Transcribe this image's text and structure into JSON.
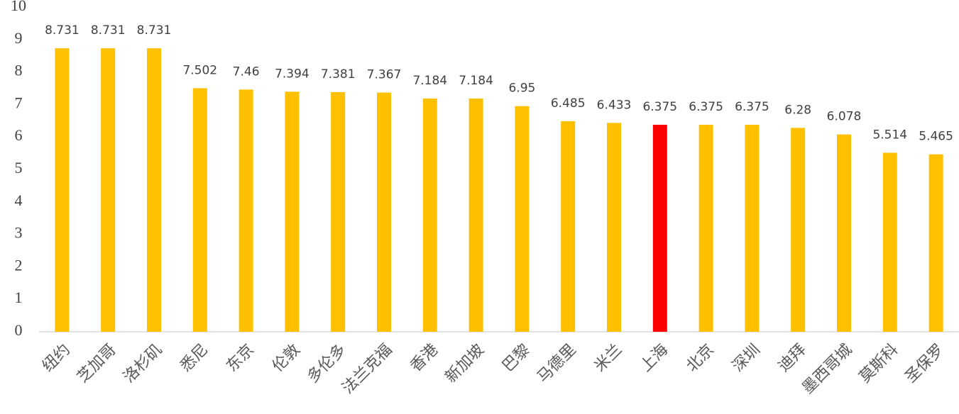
{
  "chart_data": {
    "type": "bar",
    "categories": [
      "纽约",
      "芝加哥",
      "洛杉矶",
      "悉尼",
      "东京",
      "伦敦",
      "多伦多",
      "法兰克福",
      "香港",
      "新加坡",
      "巴黎",
      "马德里",
      "米兰",
      "上海",
      "北京",
      "深圳",
      "迪拜",
      "墨西哥城",
      "莫斯科",
      "圣保罗"
    ],
    "values": [
      8.731,
      8.731,
      8.731,
      7.502,
      7.46,
      7.394,
      7.381,
      7.367,
      7.184,
      7.184,
      6.95,
      6.485,
      6.433,
      6.375,
      6.375,
      6.375,
      6.28,
      6.078,
      5.514,
      5.465
    ],
    "colors": [
      "#ffc000",
      "#ffc000",
      "#ffc000",
      "#ffc000",
      "#ffc000",
      "#ffc000",
      "#ffc000",
      "#ffc000",
      "#ffc000",
      "#ffc000",
      "#ffc000",
      "#ffc000",
      "#ffc000",
      "#ff0000",
      "#ffc000",
      "#ffc000",
      "#ffc000",
      "#ffc000",
      "#ffc000",
      "#ffc000"
    ],
    "ylim": [
      0,
      10
    ],
    "yticks": [
      0,
      1,
      2,
      3,
      4,
      5,
      6,
      7,
      8,
      9,
      10
    ],
    "grid": false
  }
}
